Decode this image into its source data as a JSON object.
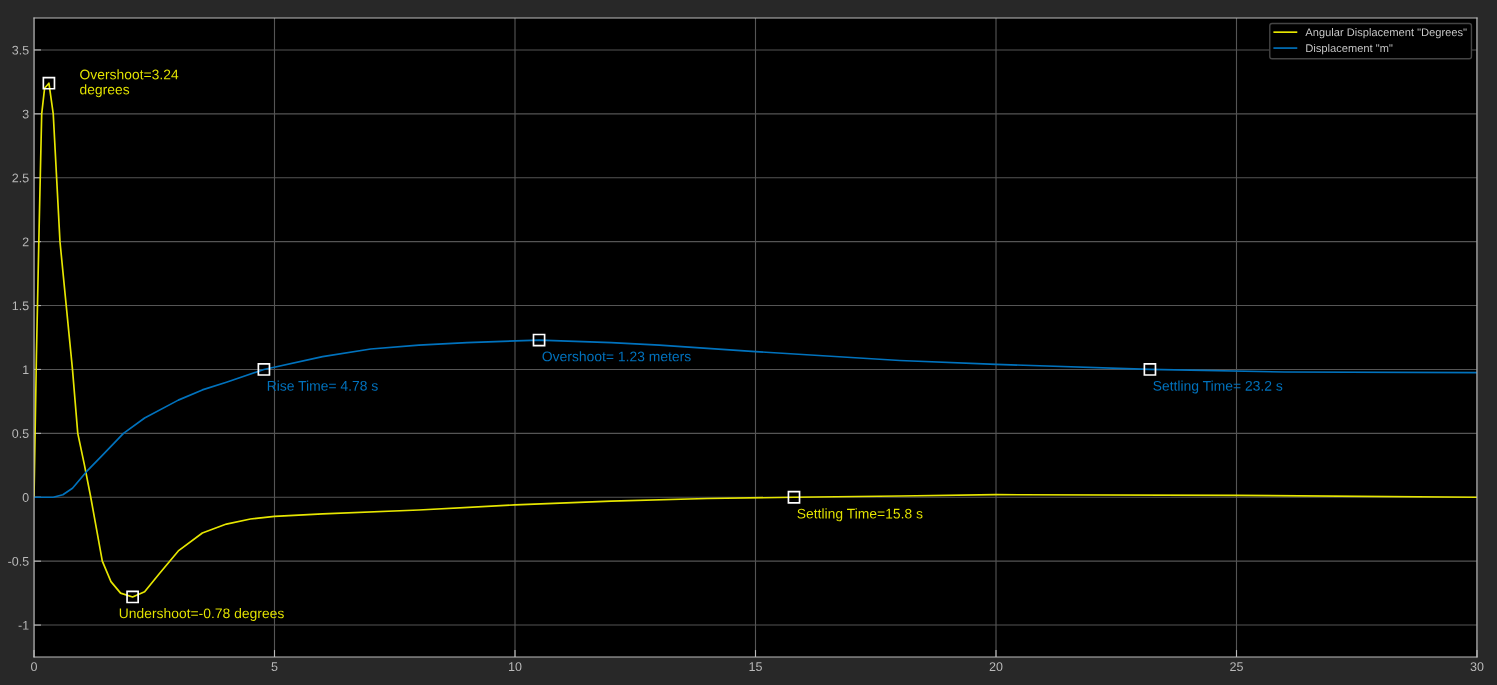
{
  "chart_data": {
    "type": "line",
    "xlim": [
      0,
      30
    ],
    "ylim": [
      -1.25,
      3.75
    ],
    "xticks": [
      0,
      5,
      10,
      15,
      20,
      25,
      30
    ],
    "yticks": [
      -1,
      -0.5,
      0,
      0.5,
      1,
      1.5,
      2,
      2.5,
      3,
      3.5
    ],
    "grid": true,
    "legend": "top right",
    "series": [
      {
        "name": "Angular Displacement \"Degrees\"",
        "color": "#e6e600",
        "x": [
          0,
          0.05,
          0.1,
          0.16,
          0.22,
          0.31,
          0.4,
          0.54,
          0.67,
          0.8,
          0.91,
          1.05,
          1.18,
          1.3,
          1.42,
          1.6,
          1.8,
          2.05,
          2.3,
          2.6,
          3.0,
          3.5,
          4.0,
          4.5,
          5,
          6,
          8,
          10,
          12,
          14,
          15.8,
          18,
          20,
          25,
          30
        ],
        "values": [
          0,
          1.1,
          2.0,
          3.0,
          3.2,
          3.24,
          3.0,
          2.0,
          1.5,
          1.0,
          0.5,
          0.25,
          0,
          -0.25,
          -0.5,
          -0.66,
          -0.75,
          -0.78,
          -0.74,
          -0.6,
          -0.42,
          -0.28,
          -0.21,
          -0.17,
          -0.15,
          -0.13,
          -0.1,
          -0.06,
          -0.03,
          -0.01,
          0,
          0.01,
          0.02,
          0.015,
          0
        ]
      },
      {
        "name": "Displacement \"m\"",
        "color": "#0072bd",
        "x": [
          0,
          0.4,
          0.6,
          0.8,
          1.09,
          1.4,
          1.86,
          2.3,
          3,
          3.5,
          4,
          4.78,
          6,
          7,
          8,
          9,
          10.5,
          12,
          13,
          15,
          18,
          20,
          23.2,
          26,
          30
        ],
        "values": [
          0,
          0,
          0.02,
          0.07,
          0.2,
          0.32,
          0.5,
          0.62,
          0.76,
          0.84,
          0.9,
          1.0,
          1.1,
          1.16,
          1.19,
          1.21,
          1.23,
          1.21,
          1.19,
          1.14,
          1.07,
          1.04,
          1.0,
          0.98,
          0.975
        ]
      }
    ],
    "annotations": [
      {
        "text": "Overshoot=3.24\ndegrees",
        "x": 0.31,
        "y": 3.24
      },
      {
        "text": "Undershoot=-0.78 degrees",
        "x": 2.05,
        "y": -0.78
      },
      {
        "text": "Settling Time=15.8 s",
        "x": 15.8,
        "y": 0
      },
      {
        "text": "Rise Time= 4.78 s",
        "x": 4.78,
        "y": 1.0
      },
      {
        "text": "Overshoot= 1.23 meters",
        "x": 10.5,
        "y": 1.23
      },
      {
        "text": "Settling Time= 23.2 s",
        "x": 23.2,
        "y": 1.0
      }
    ]
  }
}
